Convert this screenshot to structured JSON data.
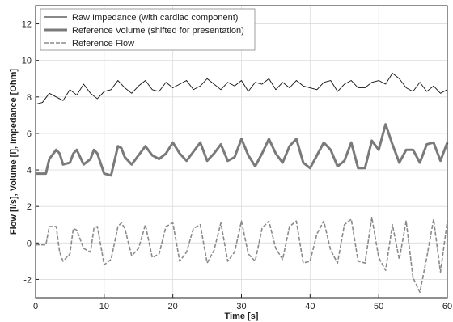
{
  "chart_data": {
    "type": "line",
    "xlabel": "Time [s]",
    "ylabel": "Flow [l/s], Volume [l], Impedance [Ohm]",
    "xlim": [
      0,
      60
    ],
    "ylim": [
      -3,
      13
    ],
    "xticks": [
      0,
      10,
      20,
      30,
      40,
      50,
      60
    ],
    "yticks": [
      -2,
      0,
      2,
      4,
      6,
      8,
      10,
      12
    ],
    "grid": true,
    "legend_position": "top-left",
    "series": [
      {
        "name": "Raw Impedance (with cardiac component)",
        "color": "#111111",
        "style": "thin-solid",
        "x": [
          0,
          1,
          2,
          3,
          4,
          5,
          6,
          7,
          8,
          9,
          10,
          11,
          12,
          13,
          14,
          15,
          16,
          17,
          18,
          19,
          20,
          21,
          22,
          23,
          24,
          25,
          26,
          27,
          28,
          29,
          30,
          31,
          32,
          33,
          34,
          35,
          36,
          37,
          38,
          39,
          40,
          41,
          42,
          43,
          44,
          45,
          46,
          47,
          48,
          49,
          50,
          51,
          52,
          53,
          54,
          55,
          56,
          57,
          58,
          59,
          60
        ],
        "y": [
          7.6,
          7.7,
          8.2,
          8.0,
          7.8,
          8.4,
          8.1,
          8.7,
          8.2,
          7.9,
          8.3,
          8.4,
          8.9,
          8.5,
          8.2,
          8.6,
          8.9,
          8.4,
          8.3,
          8.8,
          8.5,
          8.7,
          8.9,
          8.4,
          8.6,
          9.0,
          8.7,
          8.4,
          8.8,
          8.6,
          8.9,
          8.3,
          8.8,
          8.7,
          9.0,
          8.4,
          8.8,
          8.5,
          8.9,
          8.6,
          8.5,
          8.4,
          8.8,
          8.9,
          8.3,
          8.7,
          8.9,
          8.5,
          8.5,
          8.8,
          8.9,
          8.7,
          9.3,
          9.0,
          8.5,
          8.3,
          8.8,
          8.3,
          8.6,
          8.2,
          8.4
        ]
      },
      {
        "name": "Reference Volume (shifted for presentation)",
        "color": "#7a7a7a",
        "style": "thick-solid",
        "x": [
          0,
          1,
          1.5,
          2,
          3,
          3.5,
          4,
          5,
          5.5,
          6,
          7,
          8,
          8.5,
          9,
          10,
          11,
          12,
          12.5,
          13,
          14,
          15,
          16,
          17,
          18,
          19,
          20,
          21,
          22,
          23,
          24,
          25,
          26,
          27,
          28,
          29,
          30,
          31,
          32,
          33,
          34,
          35,
          36,
          37,
          38,
          39,
          40,
          41,
          42,
          43,
          44,
          45,
          46,
          47,
          48,
          49,
          50,
          51,
          52,
          53,
          54,
          55,
          56,
          57,
          58,
          59,
          60
        ],
        "y": [
          3.8,
          3.8,
          3.8,
          4.6,
          5.1,
          4.9,
          4.3,
          4.4,
          4.9,
          5.1,
          4.3,
          4.6,
          5.1,
          4.9,
          3.8,
          3.7,
          5.3,
          5.2,
          4.7,
          4.3,
          4.8,
          5.3,
          4.8,
          4.6,
          4.9,
          5.5,
          4.9,
          4.5,
          5.0,
          5.5,
          4.5,
          4.9,
          5.4,
          4.5,
          4.7,
          5.7,
          4.8,
          4.2,
          4.9,
          5.7,
          4.9,
          4.4,
          5.3,
          5.7,
          4.4,
          4.1,
          4.8,
          5.5,
          5.1,
          4.2,
          4.5,
          5.5,
          4.1,
          4.1,
          5.6,
          5.1,
          6.5,
          5.4,
          4.4,
          5.1,
          5.1,
          4.4,
          5.4,
          5.5,
          4.5,
          5.5
        ]
      },
      {
        "name": "Reference Flow",
        "color": "#8a8a8a",
        "style": "dashed",
        "x": [
          0,
          1,
          1.5,
          2,
          3,
          3.5,
          4,
          5,
          5.5,
          6,
          7,
          8,
          8.5,
          9,
          10,
          11,
          12,
          12.5,
          13,
          14,
          15,
          16,
          17,
          18,
          19,
          20,
          21,
          22,
          23,
          24,
          25,
          26,
          27,
          28,
          29,
          30,
          31,
          32,
          33,
          34,
          35,
          36,
          37,
          38,
          39,
          40,
          41,
          42,
          43,
          44,
          45,
          46,
          47,
          48,
          49,
          50,
          51,
          52,
          53,
          54,
          55,
          56,
          57,
          58,
          59,
          60
        ],
        "y": [
          -0.1,
          -0.1,
          -0.1,
          0.9,
          0.9,
          -0.5,
          -1.0,
          -0.6,
          0.8,
          0.7,
          -0.3,
          -0.5,
          0.8,
          0.9,
          -1.2,
          -0.9,
          0.9,
          1.1,
          0.8,
          -0.7,
          -0.3,
          1.0,
          -0.8,
          -0.6,
          0.9,
          1.1,
          -1.0,
          -0.5,
          0.8,
          1.0,
          -1.1,
          -0.4,
          1.1,
          -1.0,
          -0.5,
          1.2,
          -0.6,
          -1.0,
          0.8,
          1.2,
          -0.3,
          -0.9,
          0.9,
          1.2,
          -1.1,
          -1.0,
          0.5,
          1.2,
          -0.4,
          -1.1,
          1.0,
          1.3,
          -1.0,
          -1.1,
          1.4,
          -0.8,
          -1.5,
          1.0,
          -0.9,
          1.2,
          -1.9,
          -2.7,
          -0.8,
          1.3,
          -1.6,
          1.2
        ]
      }
    ]
  }
}
